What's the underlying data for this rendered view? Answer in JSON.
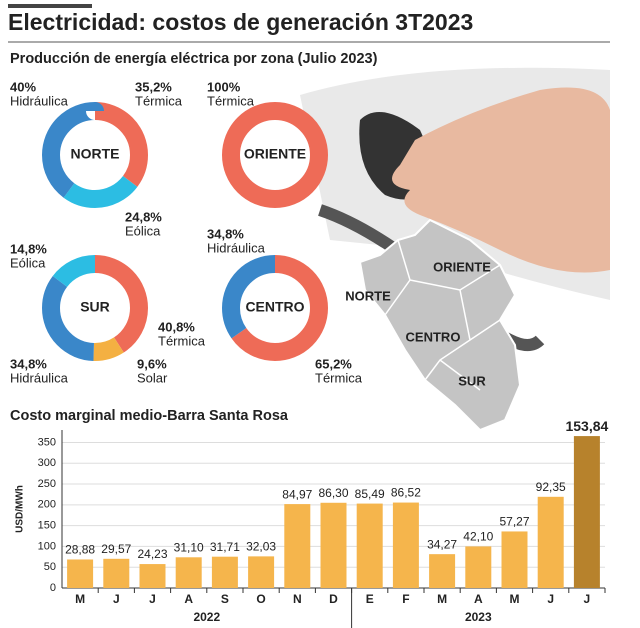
{
  "title": "Electricidad: costos de generación 3T2023",
  "subtitle": "Producción de energía eléctrica por zona (Julio 2023)",
  "map": {
    "labels": [
      "ORIENTE",
      "NORTE",
      "CENTRO",
      "SUR"
    ]
  },
  "chart_data": [
    {
      "type": "pie",
      "title": "NORTE",
      "categories": [
        "Térmica",
        "Eólica",
        "Hidráulica"
      ],
      "values": [
        35.2,
        24.8,
        40
      ],
      "value_labels": [
        "35,2%",
        "24,8%",
        "40%"
      ],
      "colors": [
        "#ee6b57",
        "#2cbde3",
        "#3a87c9"
      ]
    },
    {
      "type": "pie",
      "title": "ORIENTE",
      "categories": [
        "Térmica"
      ],
      "values": [
        100
      ],
      "value_labels": [
        "100%"
      ],
      "colors": [
        "#ee6b57"
      ]
    },
    {
      "type": "pie",
      "title": "SUR",
      "categories": [
        "Térmica",
        "Solar",
        "Hidráulica",
        "Eólica"
      ],
      "values": [
        40.8,
        9.6,
        34.8,
        14.8
      ],
      "value_labels": [
        "40,8%",
        "9,6%",
        "34,8%",
        "14,8%"
      ],
      "colors": [
        "#ee6b57",
        "#f4b042",
        "#3a87c9",
        "#2cbde3"
      ]
    },
    {
      "type": "pie",
      "title": "CENTRO",
      "categories": [
        "Térmica",
        "Hidráulica"
      ],
      "values": [
        65.2,
        34.8
      ],
      "value_labels": [
        "65,2%",
        "34,8%"
      ],
      "colors": [
        "#ee6b57",
        "#3a87c9"
      ]
    },
    {
      "type": "bar",
      "title": "Costo marginal medio-Barra Santa Rosa",
      "y2_label": "USD/MWh",
      "categories": [
        "M",
        "J",
        "J",
        "A",
        "S",
        "O",
        "N",
        "D",
        "E",
        "F",
        "M",
        "A",
        "M",
        "J",
        "J"
      ],
      "year": [
        "2022",
        "2022",
        "2022",
        "2022",
        "2022",
        "2022",
        "2022",
        "2022",
        "2023",
        "2023",
        "2023",
        "2023",
        "2023",
        "2023",
        "2023"
      ],
      "values": [
        28.88,
        29.57,
        24.23,
        31.1,
        31.71,
        32.03,
        84.97,
        86.3,
        85.49,
        86.52,
        34.27,
        42.1,
        57.27,
        92.35,
        153.84
      ],
      "value_labels": [
        "28,88",
        "29,57",
        "24,23",
        "31,10",
        "31,71",
        "32,03",
        "84,97",
        "86,30",
        "85,49",
        "86,52",
        "34,27",
        "42,10",
        "57,27",
        "92,35",
        "153,84"
      ],
      "colors": [
        "#f5b54c",
        "#f5b54c",
        "#f5b54c",
        "#f5b54c",
        "#f5b54c",
        "#f5b54c",
        "#f5b54c",
        "#f5b54c",
        "#f5b54c",
        "#f5b54c",
        "#f5b54c",
        "#f5b54c",
        "#f5b54c",
        "#f5b54c",
        "#b7822c"
      ],
      "ylim": [
        0,
        160
      ],
      "y2lim": [
        0,
        380
      ],
      "y2ticks": [
        0,
        50,
        100,
        150,
        200,
        250,
        300,
        350
      ],
      "grid": true
    }
  ]
}
